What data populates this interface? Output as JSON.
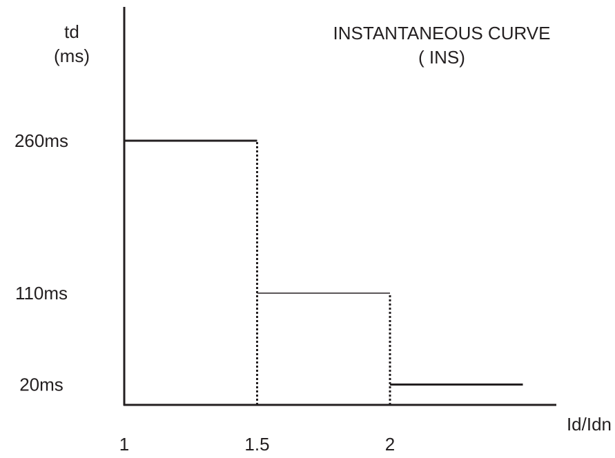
{
  "chart_data": {
    "type": "line",
    "title_lines": [
      "INSTANTANEOUS CURVE",
      "( INS)"
    ],
    "ylabel_lines": [
      "td",
      "(ms)"
    ],
    "xlabel": "Id/Idn",
    "x_ticks": [
      {
        "value": 1,
        "label": "1"
      },
      {
        "value": 1.5,
        "label": "1.5"
      },
      {
        "value": 2,
        "label": "2"
      }
    ],
    "y_ticks": [
      {
        "value": 260,
        "label": "260ms"
      },
      {
        "value": 110,
        "label": "110ms"
      },
      {
        "value": 20,
        "label": "20ms"
      }
    ],
    "xlim": [
      1,
      2.6
    ],
    "ylim": [
      0,
      400
    ],
    "series": [
      {
        "segments": [
          {
            "x": [
              1,
              1.5
            ],
            "y": [
              260,
              260
            ],
            "style": "bold"
          },
          {
            "x": [
              1.5,
              2
            ],
            "y": [
              110,
              110
            ],
            "style": "thin"
          },
          {
            "x": [
              2,
              2.5
            ],
            "y": [
              20,
              20
            ],
            "style": "bold"
          }
        ]
      }
    ],
    "drop_lines": [
      {
        "x": 1.5,
        "y_from": 0,
        "y_to": 260
      },
      {
        "x": 2,
        "y_from": 0,
        "y_to": 110
      }
    ],
    "line_color": "#231f20"
  }
}
